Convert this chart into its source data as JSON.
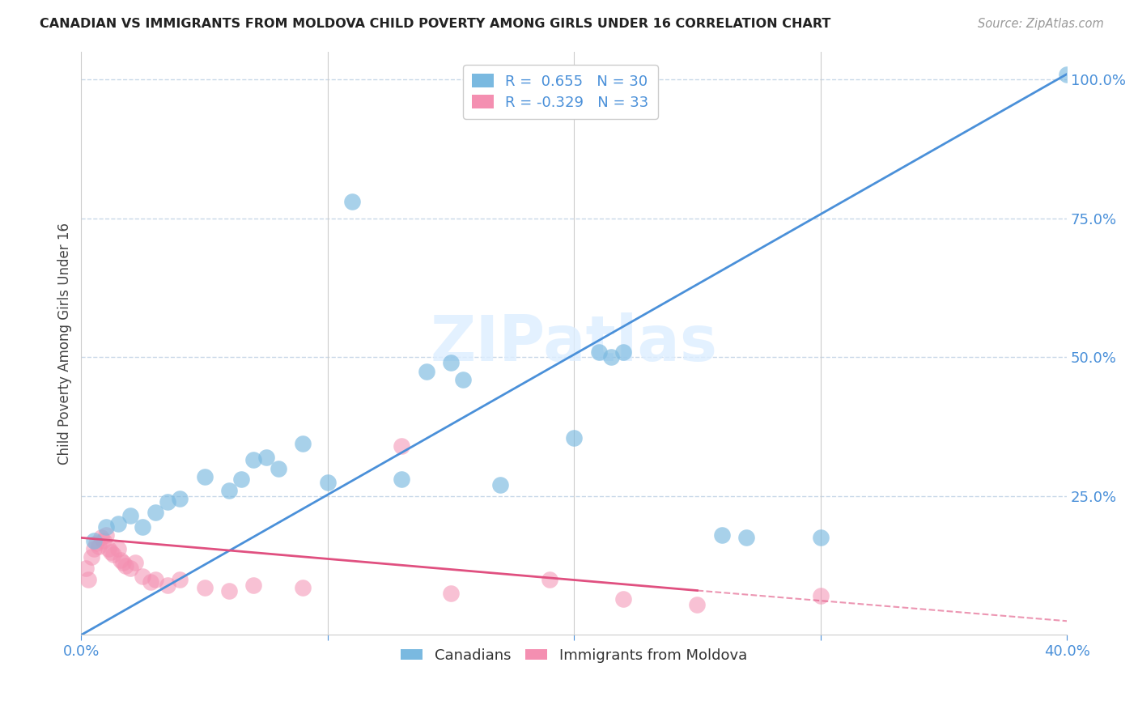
{
  "title": "CANADIAN VS IMMIGRANTS FROM MOLDOVA CHILD POVERTY AMONG GIRLS UNDER 16 CORRELATION CHART",
  "source": "Source: ZipAtlas.com",
  "ylabel": "Child Poverty Among Girls Under 16",
  "xlim": [
    0.0,
    0.4
  ],
  "ylim": [
    0.0,
    1.05
  ],
  "watermark": "ZIPatlas",
  "blue_color": "#7ab9e0",
  "pink_color": "#f48fb1",
  "blue_line_color": "#4a90d9",
  "pink_line_color": "#e05080",
  "grid_color": "#c8d8e8",
  "background_color": "#ffffff",
  "R_canadian": 0.655,
  "N_canadian": 30,
  "R_moldova": -0.329,
  "N_moldova": 33,
  "canadians_x": [
    0.005,
    0.01,
    0.015,
    0.02,
    0.025,
    0.03,
    0.035,
    0.04,
    0.05,
    0.06,
    0.065,
    0.07,
    0.075,
    0.08,
    0.09,
    0.1,
    0.11,
    0.13,
    0.14,
    0.15,
    0.155,
    0.17,
    0.2,
    0.21,
    0.215,
    0.22,
    0.26,
    0.27,
    0.3,
    0.4
  ],
  "canadians_y": [
    0.17,
    0.195,
    0.2,
    0.215,
    0.195,
    0.22,
    0.24,
    0.245,
    0.285,
    0.26,
    0.28,
    0.315,
    0.32,
    0.3,
    0.345,
    0.275,
    0.78,
    0.28,
    0.475,
    0.49,
    0.46,
    0.27,
    0.355,
    0.51,
    0.5,
    0.51,
    0.18,
    0.175,
    0.175,
    1.01
  ],
  "moldova_x": [
    0.002,
    0.003,
    0.004,
    0.005,
    0.006,
    0.007,
    0.008,
    0.009,
    0.01,
    0.011,
    0.012,
    0.013,
    0.015,
    0.016,
    0.017,
    0.018,
    0.02,
    0.022,
    0.025,
    0.028,
    0.03,
    0.035,
    0.04,
    0.05,
    0.06,
    0.07,
    0.09,
    0.13,
    0.15,
    0.19,
    0.22,
    0.25,
    0.3
  ],
  "moldova_y": [
    0.12,
    0.1,
    0.14,
    0.155,
    0.165,
    0.16,
    0.175,
    0.17,
    0.18,
    0.155,
    0.15,
    0.145,
    0.155,
    0.135,
    0.13,
    0.125,
    0.12,
    0.13,
    0.105,
    0.095,
    0.1,
    0.09,
    0.1,
    0.085,
    0.08,
    0.09,
    0.085,
    0.34,
    0.075,
    0.1,
    0.065,
    0.055,
    0.07
  ],
  "blue_line_x0": 0.0,
  "blue_line_y0": 0.0,
  "blue_line_x1": 0.4,
  "blue_line_y1": 1.01,
  "pink_line_x0": 0.0,
  "pink_line_y0": 0.175,
  "pink_line_x1_solid": 0.25,
  "pink_line_y1_solid": 0.08,
  "pink_line_x1_dash": 0.4,
  "pink_line_y1_dash": 0.025
}
